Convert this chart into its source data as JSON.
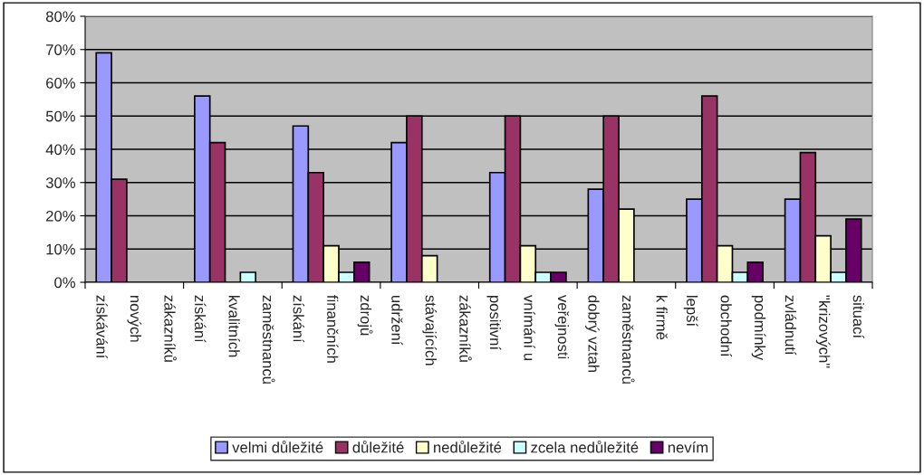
{
  "chart_data": {
    "type": "bar",
    "categories": [
      "získávání\nnových\nzákazníků",
      "získání\nkvalitních\nzaměstnanců",
      "získání\nfinančních\nzdrojů",
      "udržení\nstávajících\nzákazníků",
      "positivní\nvnímání u\nveřejnosti",
      "dobrý vztah\nzaměstnanců\nk firmě",
      "lepší\nobchodní\npodmínky",
      "zvládnutí\n\"krizových\"\nsituací"
    ],
    "series": [
      {
        "name": "velmi důležité",
        "color": "#9999ff",
        "values": [
          69,
          56,
          47,
          42,
          33,
          28,
          25,
          25
        ]
      },
      {
        "name": "důležité",
        "color": "#993366",
        "values": [
          31,
          42,
          33,
          50,
          50,
          50,
          56,
          39
        ]
      },
      {
        "name": "nedůležité",
        "color": "#ffffcc",
        "values": [
          null,
          null,
          11,
          8,
          11,
          22,
          11,
          14
        ]
      },
      {
        "name": "zcela nedůležité",
        "color": "#ccffff",
        "values": [
          null,
          3,
          3,
          null,
          3,
          null,
          3,
          3
        ]
      },
      {
        "name": "nevím",
        "color": "#660066",
        "values": [
          null,
          null,
          6,
          null,
          3,
          null,
          6,
          19
        ]
      }
    ],
    "ylim": [
      0,
      80
    ],
    "yticks": [
      {
        "value": 0,
        "label": "0%"
      },
      {
        "value": 10,
        "label": "10%"
      },
      {
        "value": 20,
        "label": "20%"
      },
      {
        "value": 30,
        "label": "30%"
      },
      {
        "value": 40,
        "label": "40%"
      },
      {
        "value": 50,
        "label": "50%"
      },
      {
        "value": 60,
        "label": "60%"
      },
      {
        "value": 70,
        "label": "70%"
      },
      {
        "value": 80,
        "label": "80%"
      }
    ],
    "grid": "y",
    "legend": "bottom"
  }
}
